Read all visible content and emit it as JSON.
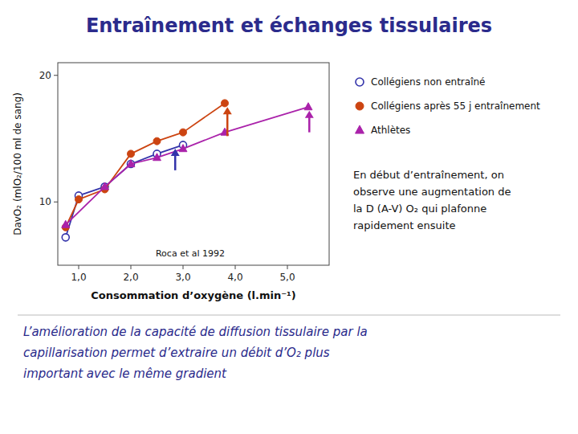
{
  "chart_data": {
    "type": "line",
    "title": "Entraînement et échanges tissulaires",
    "x_label": "Consommation d’oxygène (l.min⁻¹)",
    "y_label": "DavO₂ (mlO₂/100 ml de sang)",
    "xlim": [
      0.6,
      5.8
    ],
    "ylim": [
      5,
      21
    ],
    "xticks": [
      {
        "value": 1.0,
        "label": "1,0"
      },
      {
        "value": 2.0,
        "label": "2,0"
      },
      {
        "value": 3.0,
        "label": "3,0"
      },
      {
        "value": 4.0,
        "label": "4,0"
      },
      {
        "value": 5.0,
        "label": "5,0"
      }
    ],
    "yticks": [
      10,
      20
    ],
    "grid": false,
    "legend": "right",
    "series": [
      {
        "name": "Collégiens non entraîné",
        "color": "#3333AA",
        "marker": "open-circle",
        "x": [
          0.75,
          1.0,
          1.5,
          2.0,
          2.5,
          3.0
        ],
        "values": [
          7.2,
          10.5,
          11.2,
          13.0,
          13.8,
          14.5
        ]
      },
      {
        "name": "Collégiens après 55 j entraînement",
        "color": "#CC4411",
        "marker": "circle",
        "x": [
          0.75,
          1.0,
          1.5,
          2.0,
          2.5,
          3.0,
          3.8
        ],
        "values": [
          8.0,
          10.2,
          11.0,
          13.8,
          14.8,
          15.5,
          17.8
        ]
      },
      {
        "name": "Athlètes",
        "color": "#AA22AA",
        "marker": "triangle",
        "x": [
          0.75,
          1.5,
          2.0,
          2.5,
          3.0,
          3.8,
          5.4
        ],
        "values": [
          8.2,
          11.2,
          13.0,
          13.5,
          14.2,
          15.5,
          17.5
        ]
      }
    ],
    "arrows": [
      {
        "x": 2.85,
        "y_start": 12.5,
        "y_end": 14.2,
        "color": "#3333AA"
      },
      {
        "x": 3.85,
        "y_start": 15.2,
        "y_end": 17.5,
        "color": "#CC4411"
      },
      {
        "x": 5.42,
        "y_start": 15.5,
        "y_end": 17.2,
        "color": "#AA22AA"
      }
    ],
    "annotations": [
      {
        "text": "Roca et al 1992",
        "x": 3.8,
        "y": 5.6
      },
      {
        "text": "En début d’entraînement, on\nobserve une augmentation de\nla D (A-V) O₂ qui plafonne\nrapidement ensuite"
      }
    ],
    "caption": [
      "L’amélioration de la capacité de diffusion tissulaire par la",
      "capillarisation permet d’extraire un débit d’O₂ plus",
      "important avec le même gradient"
    ]
  }
}
